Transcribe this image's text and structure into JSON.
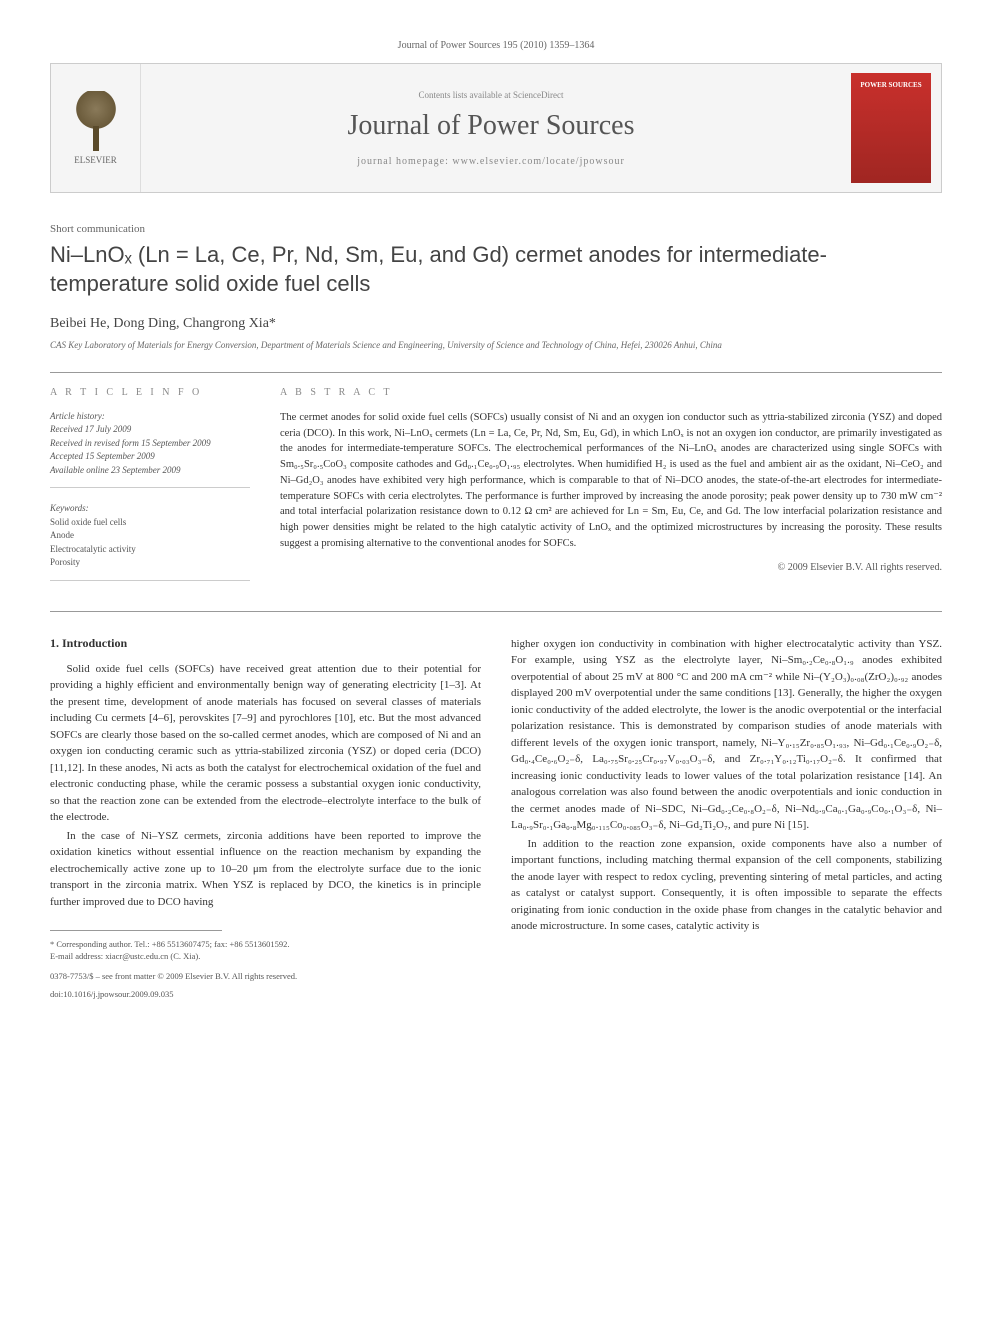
{
  "header": {
    "citation": "Journal of Power Sources 195 (2010) 1359–1364",
    "contentsLine": "Contents lists available at ScienceDirect",
    "journalName": "Journal of Power Sources",
    "homepage": "journal homepage: www.elsevier.com/locate/jpowsour",
    "elsevierLabel": "ELSEVIER",
    "coverTitle": "POWER SOURCES"
  },
  "article": {
    "type": "Short communication",
    "title": "Ni–LnOₓ (Ln = La, Ce, Pr, Nd, Sm, Eu, and Gd) cermet anodes for intermediate-temperature solid oxide fuel cells",
    "authors": "Beibei He, Dong Ding, Changrong Xia*",
    "affiliation": "CAS Key Laboratory of Materials for Energy Conversion, Department of Materials Science and Engineering, University of Science and Technology of China, Hefei, 230026 Anhui, China"
  },
  "info": {
    "labelInfo": "A R T I C L E   I N F O",
    "historyLabel": "Article history:",
    "received": "Received 17 July 2009",
    "revised": "Received in revised form 15 September 2009",
    "accepted": "Accepted 15 September 2009",
    "online": "Available online 23 September 2009",
    "keywordsLabel": "Keywords:",
    "keywords": [
      "Solid oxide fuel cells",
      "Anode",
      "Electrocatalytic activity",
      "Porosity"
    ]
  },
  "abstract": {
    "label": "A B S T R A C T",
    "text": "The cermet anodes for solid oxide fuel cells (SOFCs) usually consist of Ni and an oxygen ion conductor such as yttria-stabilized zirconia (YSZ) and doped ceria (DCO). In this work, Ni–LnOₓ cermets (Ln = La, Ce, Pr, Nd, Sm, Eu, Gd), in which LnOₓ is not an oxygen ion conductor, are primarily investigated as the anodes for intermediate-temperature SOFCs. The electrochemical performances of the Ni–LnOₓ anodes are characterized using single SOFCs with Sm₀.₅Sr₀.₅CoO₃ composite cathodes and Gd₀.₁Ce₀.₉O₁.₉₅ electrolytes. When humidified H₂ is used as the fuel and ambient air as the oxidant, Ni–CeO₂ and Ni–Gd₂O₃ anodes have exhibited very high performance, which is comparable to that of Ni–DCO anodes, the state-of-the-art electrodes for intermediate-temperature SOFCs with ceria electrolytes. The performance is further improved by increasing the anode porosity; peak power density up to 730 mW cm⁻² and total interfacial polarization resistance down to 0.12 Ω cm² are achieved for Ln = Sm, Eu, Ce, and Gd. The low interfacial polarization resistance and high power densities might be related to the high catalytic activity of LnOₓ and the optimized microstructures by increasing the porosity. These results suggest a promising alternative to the conventional anodes for SOFCs.",
    "copyright": "© 2009 Elsevier B.V. All rights reserved."
  },
  "body": {
    "section1": {
      "heading": "1. Introduction",
      "p1": "Solid oxide fuel cells (SOFCs) have received great attention due to their potential for providing a highly efficient and environmentally benign way of generating electricity [1–3]. At the present time, development of anode materials has focused on several classes of materials including Cu cermets [4–6], perovskites [7–9] and pyrochlores [10], etc. But the most advanced SOFCs are clearly those based on the so-called cermet anodes, which are composed of Ni and an oxygen ion conducting ceramic such as yttria-stabilized zirconia (YSZ) or doped ceria (DCO) [11,12]. In these anodes, Ni acts as both the catalyst for electrochemical oxidation of the fuel and electronic conducting phase, while the ceramic possess a substantial oxygen ionic conductivity, so that the reaction zone can be extended from the electrode–electrolyte interface to the bulk of the electrode.",
      "p2": "In the case of Ni–YSZ cermets, zirconia additions have been reported to improve the oxidation kinetics without essential influence on the reaction mechanism by expanding the electrochemically active zone up to 10–20 μm from the electrolyte surface due to the ionic transport in the zirconia matrix. When YSZ is replaced by DCO, the kinetics is in principle further improved due to DCO having",
      "p3": "higher oxygen ion conductivity in combination with higher electrocatalytic activity than YSZ. For example, using YSZ as the electrolyte layer, Ni–Sm₀.₂Ce₀.₈O₁.₉ anodes exhibited overpotential of about 25 mV at 800 °C and 200 mA cm⁻² while Ni–(Y₂O₃)₀.₀₈(ZrO₂)₀.₉₂ anodes displayed 200 mV overpotential under the same conditions [13]. Generally, the higher the oxygen ionic conductivity of the added electrolyte, the lower is the anodic overpotential or the interfacial polarization resistance. This is demonstrated by comparison studies of anode materials with different levels of the oxygen ionic transport, namely, Ni–Y₀.₁₅Zr₀.₈₅O₁.₉₃, Ni–Gd₀.₁Ce₀.₉O₂₋δ, Gd₀.₄Ce₀.₆O₂₋δ, La₀.₇₅Sr₀.₂₅Cr₀.₉₇V₀.₀₃O₃₋δ, and Zr₀.₇₁Y₀.₁₂Ti₀.₁₇O₂₋δ. It confirmed that increasing ionic conductivity leads to lower values of the total polarization resistance [14]. An analogous correlation was also found between the anodic overpotentials and ionic conduction in the cermet anodes made of Ni–SDC, Ni–Gd₀.₂Ce₀.₈O₂₋δ, Ni–Nd₀.₉Ca₀.₁Ga₀.₉Co₀.₁O₃₋δ, Ni–La₀.₉Sr₀.₁Ga₀.₈Mg₀.₁₁₅Co₀.₀₈₅O₃₋δ, Ni–Gd₂Ti₂O₇, and pure Ni [15].",
      "p4": "In addition to the reaction zone expansion, oxide components have also a number of important functions, including matching thermal expansion of the cell components, stabilizing the anode layer with respect to redox cycling, preventing sintering of metal particles, and acting as catalyst or catalyst support. Consequently, it is often impossible to separate the effects originating from ionic conduction in the oxide phase from changes in the catalytic behavior and anode microstructure. In some cases, catalytic activity is"
    }
  },
  "footer": {
    "corresponding": "* Corresponding author. Tel.: +86 5513607475; fax: +86 5513601592.",
    "email": "E-mail address: xiacr@ustc.edu.cn (C. Xia).",
    "issn": "0378-7753/$ – see front matter © 2009 Elsevier B.V. All rights reserved.",
    "doi": "doi:10.1016/j.jpowsour.2009.09.035"
  },
  "colors": {
    "linkColor": "#1a5490",
    "coverRed": "#c9302c",
    "textGray": "#555",
    "borderGray": "#ccc"
  }
}
